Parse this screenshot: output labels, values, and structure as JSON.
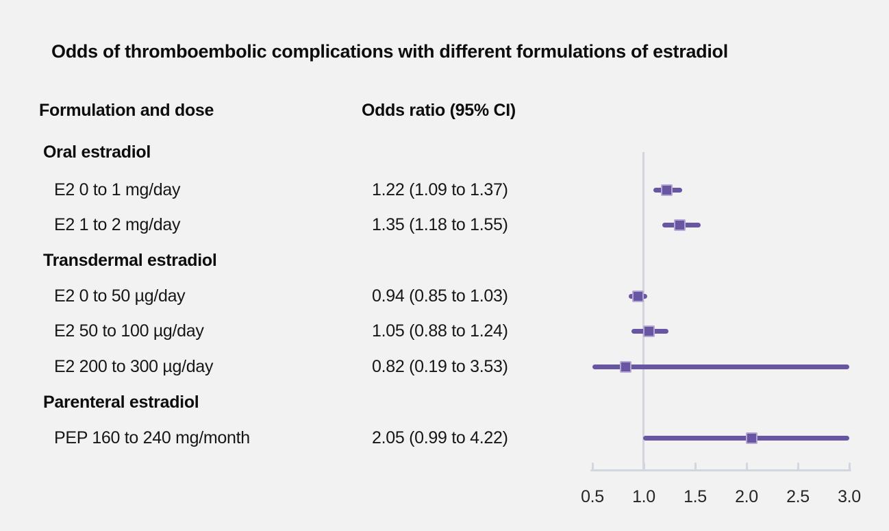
{
  "title": "Odds of thromboembolic complications with different formulations of estradiol",
  "columns": {
    "formulation": "Formulation and dose",
    "odds_ratio": "Odds ratio (95% CI)"
  },
  "chart_data": {
    "type": "forest",
    "x_axis": {
      "ticks": [
        "0.5",
        "1.0",
        "1.5",
        "2.0",
        "2.5",
        "3.0"
      ],
      "tick_values": [
        0.5,
        1.0,
        1.5,
        2.0,
        2.5,
        3.0
      ],
      "range": [
        0.5,
        3.0
      ],
      "reference_line": 1.0
    },
    "groups": [
      {
        "label": "Oral estradiol",
        "items": [
          {
            "label": "E2 0 to 1 mg/day",
            "display": "1.22 (1.09 to 1.37)",
            "or": 1.22,
            "ci_low": 1.09,
            "ci_high": 1.37
          },
          {
            "label": "E2 1 to 2 mg/day",
            "display": "1.35 (1.18 to 1.55)",
            "or": 1.35,
            "ci_low": 1.18,
            "ci_high": 1.55
          }
        ]
      },
      {
        "label": "Transdermal estradiol",
        "items": [
          {
            "label": "E2 0 to 50 µg/day",
            "display": "0.94 (0.85 to 1.03)",
            "or": 0.94,
            "ci_low": 0.85,
            "ci_high": 1.03
          },
          {
            "label": "E2 50 to 100 µg/day",
            "display": "1.05 (0.88 to 1.24)",
            "or": 1.05,
            "ci_low": 0.88,
            "ci_high": 1.24
          },
          {
            "label": "E2 200 to 300 µg/day",
            "display": "0.82 (0.19 to 3.53)",
            "or": 0.82,
            "ci_low": 0.19,
            "ci_high": 3.53
          }
        ]
      },
      {
        "label": "Parenteral estradiol",
        "items": [
          {
            "label": "PEP 160 to 240 mg/month",
            "display": "2.05 (0.99 to 4.22)",
            "or": 2.05,
            "ci_low": 0.99,
            "ci_high": 4.22
          }
        ]
      }
    ]
  },
  "colors": {
    "marker": "#6856a2",
    "marker_border": "#b5a6d4",
    "axis": "#d2d7de",
    "reference_line": "#d2d5dd",
    "background": "#f2f2f2",
    "text": "#161616"
  }
}
